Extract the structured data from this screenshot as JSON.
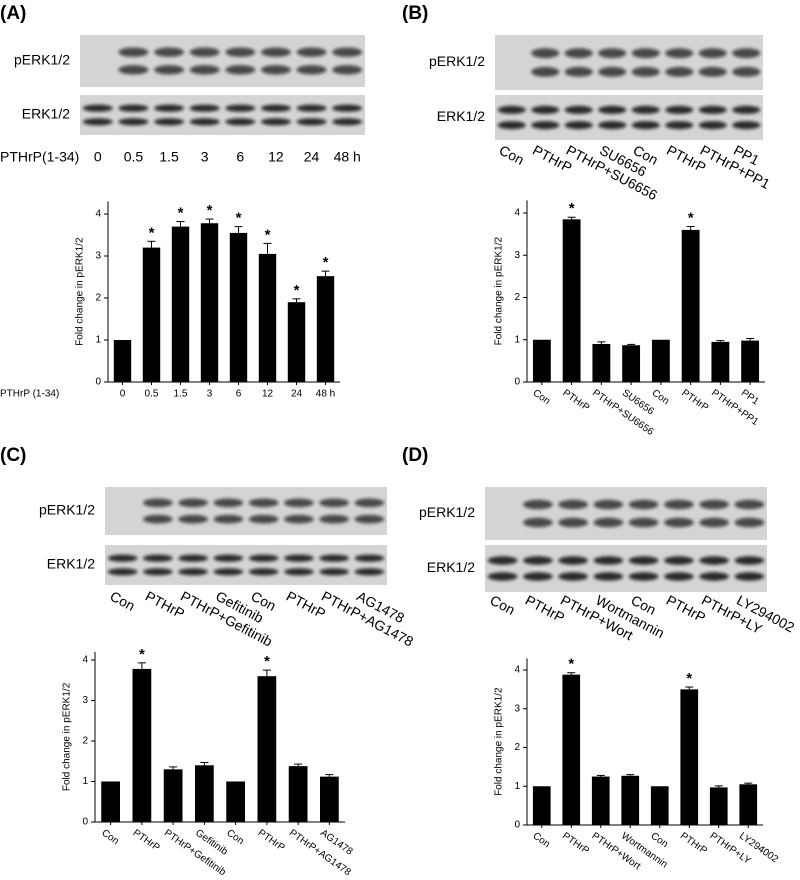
{
  "blots": [
    {
      "label": "(A)",
      "rows": [
        "pERK1/2",
        "ERK1/2"
      ],
      "prefix": "PTHrP(1-34)",
      "lanes": [
        "0",
        "0.5",
        "1.5",
        "3",
        "6",
        "12",
        "24",
        "48 h"
      ]
    },
    {
      "label": "(B)",
      "rows": [
        "pERK1/2",
        "ERK1/2"
      ],
      "lanes": [
        "Con",
        "PTHrP",
        "PTHrP+SU6656",
        "SU6656",
        "Con",
        "PTHrP",
        "PTHrP+PP1",
        "PP1"
      ]
    },
    {
      "label": "(C)",
      "rows": [
        "pERK1/2",
        "ERK1/2"
      ],
      "lanes": [
        "Con",
        "PTHrP",
        "PTHrP+Gefitinib",
        "Gefitinib",
        "Con",
        "PTHrP",
        "PTHrP+AG1478",
        "AG1478"
      ]
    },
    {
      "label": "(D)",
      "rows": [
        "pERK1/2",
        "ERK1/2"
      ],
      "lanes": [
        "Con",
        "PTHrP",
        "PTHrP+Wort",
        "Wortmannin",
        "Con",
        "PTHrP",
        "PTHrP+LY",
        "LY294002"
      ]
    }
  ],
  "chart_data": [
    {
      "type": "bar",
      "ylabel": "Fold change in pERK1/2",
      "xlabel": "PTHrP (1-34)",
      "color": "#000000",
      "categories": [
        "0",
        "0.5",
        "1.5",
        "3",
        "6",
        "12",
        "24",
        "48 h"
      ],
      "values": [
        1,
        3.2,
        3.7,
        3.78,
        3.55,
        3.05,
        1.9,
        2.52
      ],
      "errors": [
        0,
        0.15,
        0.12,
        0.1,
        0.15,
        0.25,
        0.08,
        0.12
      ],
      "significance": [
        null,
        "*",
        "*",
        "*",
        "*",
        "*",
        "*",
        "*"
      ],
      "ylim": [
        0,
        4.3
      ],
      "yticks": [
        0,
        1,
        2,
        3,
        4
      ]
    },
    {
      "type": "bar",
      "ylabel": "Fold change in pERK1/2",
      "color": "#000000",
      "categories": [
        "Con",
        "PTHrP",
        "PTHrP+SU6656",
        "SU6656",
        "Con",
        "PTHrP",
        "PTHrP+PP1",
        "PP1"
      ],
      "values": [
        1,
        3.85,
        0.9,
        0.87,
        1,
        3.6,
        0.95,
        0.98
      ],
      "errors": [
        0,
        0.05,
        0.05,
        0.02,
        0,
        0.08,
        0.03,
        0.05
      ],
      "significance": [
        null,
        "*",
        null,
        null,
        null,
        "*",
        null,
        null
      ],
      "ylim": [
        0,
        4.3
      ],
      "yticks": [
        0,
        1,
        2,
        3,
        4
      ]
    },
    {
      "type": "bar",
      "ylabel": "Fold change in pERK1/2",
      "color": "#000000",
      "categories": [
        "Con",
        "PTHrP",
        "PTHrP+Gefitinib",
        "Gefitinib",
        "Con",
        "PTHrP",
        "PTHrP+AG1478",
        "AG1478"
      ],
      "values": [
        1,
        3.78,
        1.3,
        1.4,
        1,
        3.6,
        1.38,
        1.12
      ],
      "errors": [
        0,
        0.15,
        0.06,
        0.07,
        0,
        0.15,
        0.05,
        0.05
      ],
      "significance": [
        null,
        "*",
        null,
        null,
        null,
        "*",
        null,
        null
      ],
      "ylim": [
        0,
        4.2
      ],
      "yticks": [
        0,
        1,
        2,
        3,
        4
      ]
    },
    {
      "type": "bar",
      "ylabel": "Fold change in pERK1/2",
      "color": "#000000",
      "categories": [
        "Con",
        "PTHrP",
        "PTHrP+Wort",
        "Wortmannin",
        "Con",
        "PTHrP",
        "PTHrP+LY",
        "LY294002"
      ],
      "values": [
        1,
        3.88,
        1.25,
        1.27,
        1,
        3.5,
        0.97,
        1.05
      ],
      "errors": [
        0,
        0.05,
        0.03,
        0.03,
        0,
        0.06,
        0.04,
        0.03
      ],
      "significance": [
        null,
        "*",
        null,
        null,
        null,
        "*",
        null,
        null
      ],
      "ylim": [
        0,
        4.3
      ],
      "yticks": [
        0,
        1,
        2,
        3,
        4
      ]
    }
  ]
}
